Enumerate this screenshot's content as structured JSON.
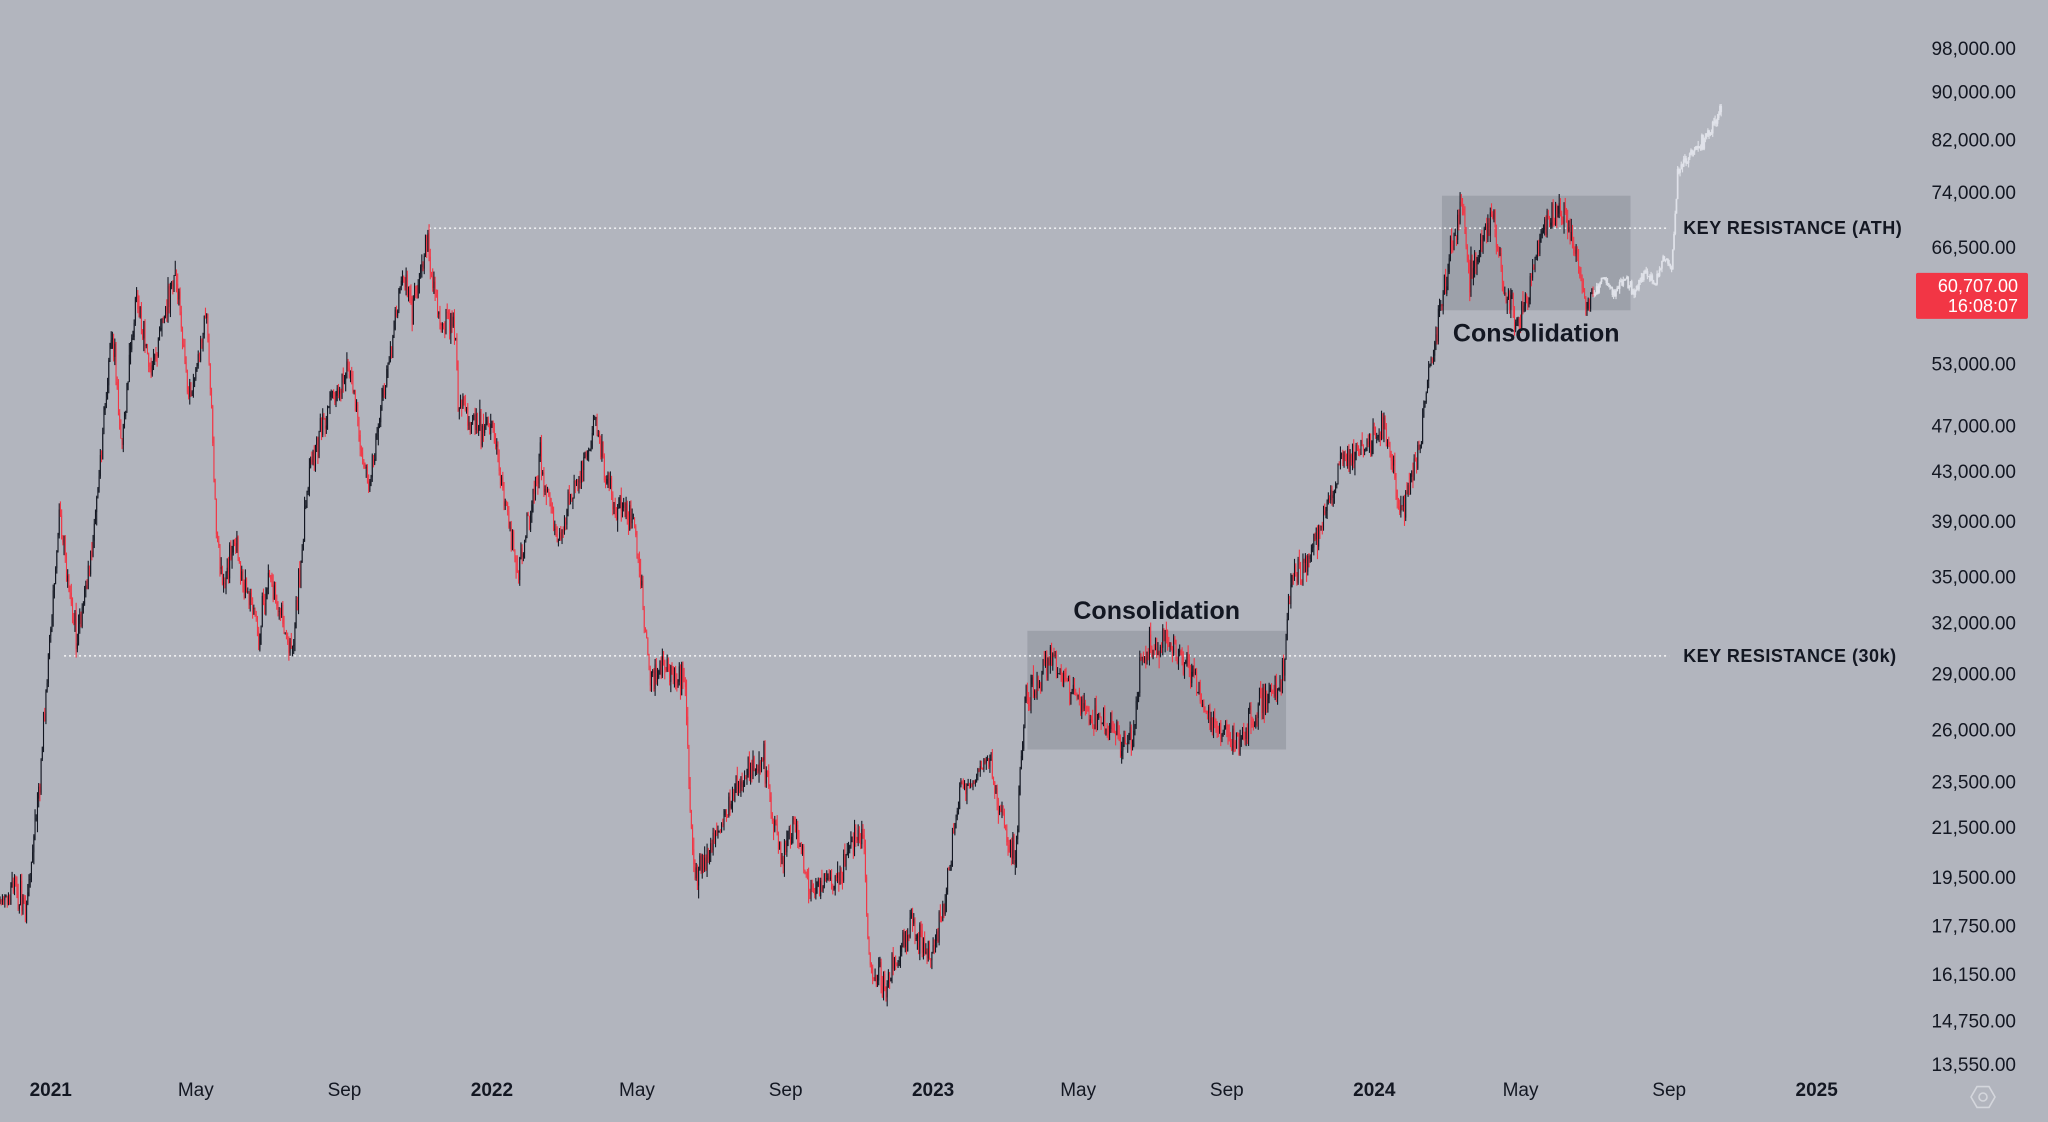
{
  "chart_data": {
    "type": "candlestick",
    "y_scale": "log",
    "ylim": [
      12800,
      103000
    ],
    "x_range": [
      "2020-11-20",
      "2025-02-10"
    ],
    "y_ticks": [
      {
        "value": 98000,
        "label": "98,000.00"
      },
      {
        "value": 90000,
        "label": "90,000.00"
      },
      {
        "value": 82000,
        "label": "82,000.00"
      },
      {
        "value": 74000,
        "label": "74,000.00"
      },
      {
        "value": 66500,
        "label": "66,500.00"
      },
      {
        "value": 53000,
        "label": "53,000.00"
      },
      {
        "value": 47000,
        "label": "47,000.00"
      },
      {
        "value": 43000,
        "label": "43,000.00"
      },
      {
        "value": 39000,
        "label": "39,000.00"
      },
      {
        "value": 35000,
        "label": "35,000.00"
      },
      {
        "value": 32000,
        "label": "32,000.00"
      },
      {
        "value": 29000,
        "label": "29,000.00"
      },
      {
        "value": 26000,
        "label": "26,000.00"
      },
      {
        "value": 23500,
        "label": "23,500.00"
      },
      {
        "value": 21500,
        "label": "21,500.00"
      },
      {
        "value": 19500,
        "label": "19,500.00"
      },
      {
        "value": 17750,
        "label": "17,750.00"
      },
      {
        "value": 16150,
        "label": "16,150.00"
      },
      {
        "value": 14750,
        "label": "14,750.00"
      },
      {
        "value": 13550,
        "label": "13,550.00"
      }
    ],
    "x_ticks": [
      {
        "date": "2021-01-01",
        "label": "2021",
        "year": true
      },
      {
        "date": "2021-05-01",
        "label": "May",
        "year": false
      },
      {
        "date": "2021-09-01",
        "label": "Sep",
        "year": false
      },
      {
        "date": "2022-01-01",
        "label": "2022",
        "year": true
      },
      {
        "date": "2022-05-01",
        "label": "May",
        "year": false
      },
      {
        "date": "2022-09-01",
        "label": "Sep",
        "year": false
      },
      {
        "date": "2023-01-01",
        "label": "2023",
        "year": true
      },
      {
        "date": "2023-05-01",
        "label": "May",
        "year": false
      },
      {
        "date": "2023-09-01",
        "label": "Sep",
        "year": false
      },
      {
        "date": "2024-01-01",
        "label": "2024",
        "year": true
      },
      {
        "date": "2024-05-01",
        "label": "May",
        "year": false
      },
      {
        "date": "2024-09-01",
        "label": "Sep",
        "year": false
      },
      {
        "date": "2025-01-01",
        "label": "2025",
        "year": true
      }
    ],
    "price_path": [
      [
        "2020-11-20",
        18500
      ],
      [
        "2020-12-01",
        19200
      ],
      [
        "2020-12-12",
        18300
      ],
      [
        "2020-12-22",
        23000
      ],
      [
        "2021-01-08",
        39500
      ],
      [
        "2021-01-22",
        31000
      ],
      [
        "2021-02-05",
        37500
      ],
      [
        "2021-02-21",
        57000
      ],
      [
        "2021-02-28",
        45000
      ],
      [
        "2021-03-13",
        61000
      ],
      [
        "2021-03-25",
        52000
      ],
      [
        "2021-04-14",
        63500
      ],
      [
        "2021-04-25",
        49000
      ],
      [
        "2021-05-10",
        58000
      ],
      [
        "2021-05-19",
        37000
      ],
      [
        "2021-05-23",
        34000
      ],
      [
        "2021-06-01",
        37500
      ],
      [
        "2021-06-22",
        31500
      ],
      [
        "2021-07-01",
        35000
      ],
      [
        "2021-07-20",
        29900
      ],
      [
        "2021-08-01",
        41500
      ],
      [
        "2021-08-14",
        47500
      ],
      [
        "2021-08-22",
        49500
      ],
      [
        "2021-09-06",
        52000
      ],
      [
        "2021-09-21",
        41000
      ],
      [
        "2021-10-01",
        48000
      ],
      [
        "2021-10-20",
        64000
      ],
      [
        "2021-10-28",
        59000
      ],
      [
        "2021-11-09",
        67500
      ],
      [
        "2021-11-19",
        57000
      ],
      [
        "2021-12-01",
        57000
      ],
      [
        "2021-12-04",
        49000
      ],
      [
        "2021-12-20",
        47000
      ],
      [
        "2022-01-01",
        47000
      ],
      [
        "2022-01-10",
        41500
      ],
      [
        "2022-01-22",
        35000
      ],
      [
        "2022-02-10",
        44000
      ],
      [
        "2022-02-24",
        37500
      ],
      [
        "2022-03-28",
        47500
      ],
      [
        "2022-04-12",
        40000
      ],
      [
        "2022-04-28",
        39500
      ],
      [
        "2022-05-09",
        31000
      ],
      [
        "2022-05-12",
        29000
      ],
      [
        "2022-05-20",
        29500
      ],
      [
        "2022-06-10",
        28500
      ],
      [
        "2022-06-14",
        22000
      ],
      [
        "2022-06-18",
        19500
      ],
      [
        "2022-07-08",
        21500
      ],
      [
        "2022-07-30",
        23800
      ],
      [
        "2022-08-14",
        24500
      ],
      [
        "2022-08-28",
        20000
      ],
      [
        "2022-09-10",
        21800
      ],
      [
        "2022-09-20",
        19000
      ],
      [
        "2022-10-10",
        19200
      ],
      [
        "2022-10-26",
        20800
      ],
      [
        "2022-11-04",
        21200
      ],
      [
        "2022-11-09",
        16500
      ],
      [
        "2022-11-22",
        15800
      ],
      [
        "2022-12-14",
        17800
      ],
      [
        "2022-12-31",
        16550
      ],
      [
        "2023-01-12",
        18800
      ],
      [
        "2023-01-22",
        22800
      ],
      [
        "2023-02-16",
        24500
      ],
      [
        "2023-03-10",
        20000
      ],
      [
        "2023-03-18",
        27500
      ],
      [
        "2023-04-10",
        30000
      ],
      [
        "2023-04-20",
        28500
      ],
      [
        "2023-05-12",
        26500
      ],
      [
        "2023-06-15",
        25200
      ],
      [
        "2023-06-22",
        30000
      ],
      [
        "2023-07-13",
        31000
      ],
      [
        "2023-08-01",
        29200
      ],
      [
        "2023-08-17",
        26500
      ],
      [
        "2023-09-11",
        25300
      ],
      [
        "2023-10-01",
        27500
      ],
      [
        "2023-10-16",
        28500
      ],
      [
        "2023-10-24",
        34500
      ],
      [
        "2023-11-10",
        37000
      ],
      [
        "2023-12-05",
        43500
      ],
      [
        "2024-01-11",
        46500
      ],
      [
        "2024-01-23",
        39500
      ],
      [
        "2024-02-08",
        45000
      ],
      [
        "2024-02-15",
        52000
      ],
      [
        "2024-02-28",
        61500
      ],
      [
        "2024-03-14",
        72000
      ],
      [
        "2024-03-20",
        62500
      ],
      [
        "2024-04-08",
        71500
      ],
      [
        "2024-04-17",
        61000
      ],
      [
        "2024-05-01",
        57500
      ],
      [
        "2024-05-21",
        70000
      ],
      [
        "2024-06-07",
        71000
      ],
      [
        "2024-06-24",
        60000
      ],
      [
        "2024-06-30",
        60707
      ]
    ],
    "last_date": "2024-06-30",
    "projection_path": [
      [
        "2024-06-30",
        60707
      ],
      [
        "2024-07-10",
        63000
      ],
      [
        "2024-07-18",
        60500
      ],
      [
        "2024-07-26",
        62500
      ],
      [
        "2024-08-03",
        60800
      ],
      [
        "2024-08-12",
        63800
      ],
      [
        "2024-08-20",
        61800
      ],
      [
        "2024-08-27",
        65000
      ],
      [
        "2024-09-03",
        64000
      ],
      [
        "2024-09-08",
        77000
      ],
      [
        "2024-09-22",
        80500
      ],
      [
        "2024-10-03",
        82500
      ],
      [
        "2024-10-14",
        86500
      ]
    ],
    "levels": [
      {
        "label": "KEY RESISTANCE (ATH)",
        "price": 69000,
        "from": "2021-11-10",
        "to": "2024-09-01"
      },
      {
        "label": "KEY RESISTANCE (30k)",
        "price": 30000,
        "from": "2021-01-12",
        "to": "2024-09-01"
      }
    ],
    "zones": [
      {
        "label": "Consolidation",
        "from": "2023-03-20",
        "to": "2023-10-20",
        "low": 25000,
        "high": 31500,
        "label_pos": "above"
      },
      {
        "label": "Consolidation",
        "from": "2024-02-26",
        "to": "2024-07-31",
        "low": 58800,
        "high": 73500,
        "label_pos": "below"
      }
    ],
    "current_price": {
      "value": 60707,
      "label": "60,707.00",
      "countdown": "16:08:07"
    },
    "colors": {
      "background": "#b2b5be",
      "up": "#131722",
      "down": "#f23645",
      "projection": "#e1e3ea",
      "zone_fill": "#8d9099",
      "level_line": "#ffffff",
      "badge": "#f23645"
    }
  }
}
